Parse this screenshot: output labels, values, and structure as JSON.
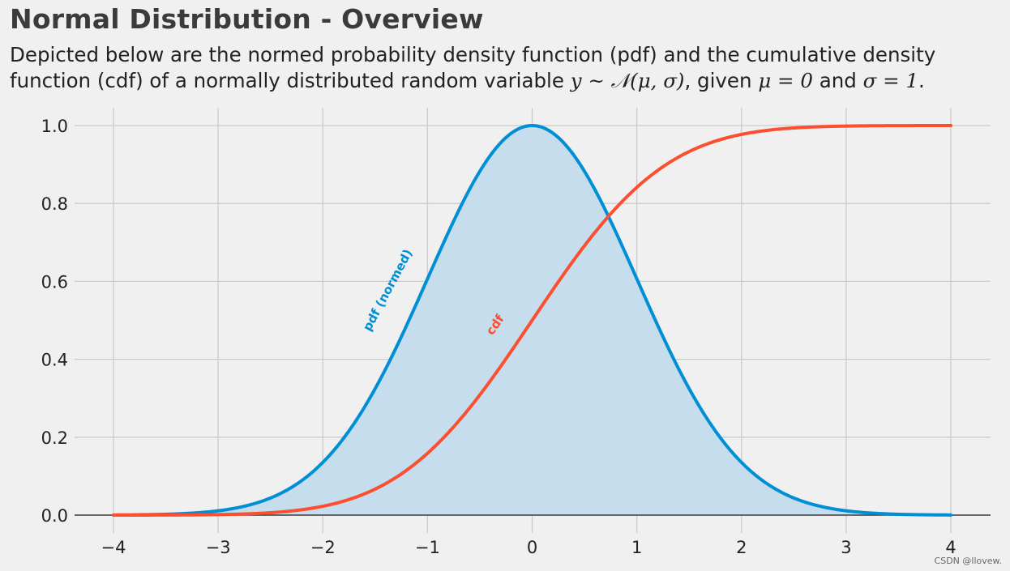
{
  "chart_data": {
    "type": "line",
    "title": "Normal Distribution - Overview",
    "subtitle": {
      "line1": "Depicted below are the normed probability density function (pdf) and the cumulative density",
      "line2_prefix": "function (cdf) of a normally distributed random variable ",
      "line2_math": "y ~ 𝒩(μ, σ)",
      "line2_middle": ", given ",
      "line2_mu": "μ = 0",
      "line2_and": " and ",
      "line2_sigma": "σ = 1",
      "line2_suffix": "."
    },
    "xlabel": "",
    "ylabel": "",
    "xlim": [
      -4,
      4
    ],
    "ylim": [
      0,
      1
    ],
    "grid": true,
    "x_ticks": [
      -4,
      -3,
      -2,
      -1,
      0,
      1,
      2,
      3,
      4
    ],
    "x_tick_labels": [
      "−4",
      "−3",
      "−2",
      "−1",
      "0",
      "1",
      "2",
      "3",
      "4"
    ],
    "y_ticks": [
      0,
      0.2,
      0.4,
      0.6,
      0.8,
      1.0
    ],
    "y_tick_labels": [
      "0.0",
      "0.2",
      "0.4",
      "0.6",
      "0.8",
      "1.0"
    ],
    "mu": 0,
    "sigma": 1,
    "series": [
      {
        "name": "pdf (normed)",
        "function": "exp(-x^2/2)",
        "color": "#008fd5",
        "fill": "#c5dded",
        "label_anchor": {
          "x": -1.55,
          "y": 0.47,
          "rotation_deg": -62
        }
      },
      {
        "name": "cdf",
        "function": "Phi(x)",
        "color": "#fc4f30",
        "label_anchor": {
          "x": -0.38,
          "y": 0.46,
          "rotation_deg": -55
        }
      }
    ],
    "watermark": "CSDN @llovew."
  }
}
